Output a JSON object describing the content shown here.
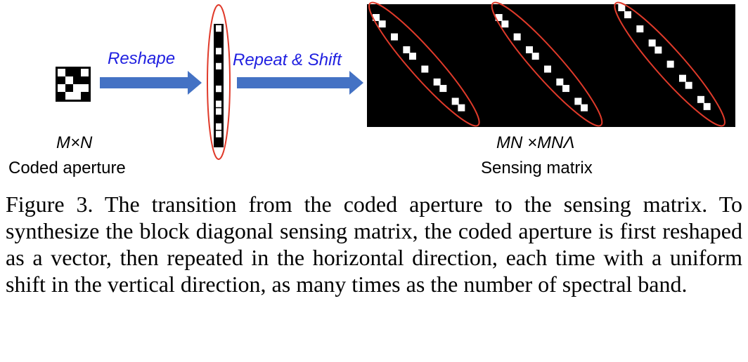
{
  "labels": {
    "reshape": "Reshape",
    "repeat_shift": "Repeat & Shift",
    "aperture_dims": "M×N",
    "aperture_name": "Coded aperture",
    "matrix_dims": "MN ×MNΛ",
    "matrix_name": "Sensing matrix"
  },
  "caption": "Figure 3. The transition from the coded aperture to the sensing matrix. To synthesize the block diagonal sensing matrix, the coded aperture is first reshaped as a vector, then repeated in the horizontal direction, each time with a uniform shift in the vertical direction, as many times as the number of spectral band.",
  "colors": {
    "arrow": "#4472c4",
    "arrow_label": "#1f1fe0",
    "ellipse": "#e03a2a",
    "matrix_bg": "#000000",
    "cell_on": "#ffffff"
  },
  "coded_aperture": {
    "rows": 4,
    "cols": 4,
    "pattern": [
      [
        1,
        0,
        0,
        1
      ],
      [
        0,
        1,
        0,
        0
      ],
      [
        1,
        0,
        1,
        1
      ],
      [
        0,
        1,
        1,
        0
      ]
    ]
  },
  "vector": {
    "pattern": [
      1,
      0,
      0,
      1,
      0,
      1,
      0,
      0,
      1,
      0,
      1,
      1,
      0,
      1,
      1,
      0
    ]
  },
  "sensing_matrix": {
    "blocks": 3
  }
}
